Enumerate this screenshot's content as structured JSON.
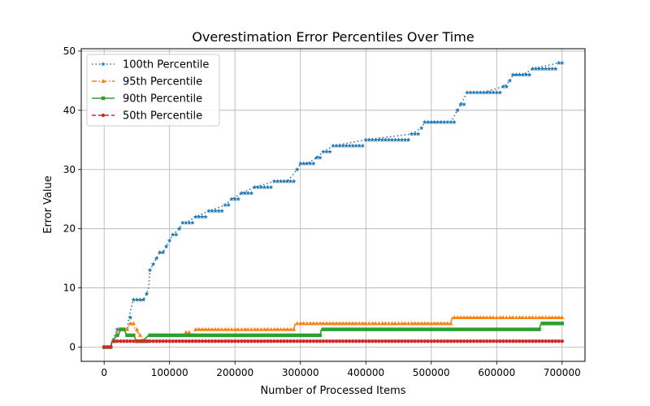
{
  "chart_data": {
    "type": "line",
    "title": "Overestimation Error Percentiles Over Time",
    "xlabel": "Number of Processed Items",
    "ylabel": "Error Value",
    "xlim": [
      -35000,
      735000
    ],
    "ylim": [
      -2.4,
      50.4
    ],
    "xticks": [
      0,
      100000,
      200000,
      300000,
      400000,
      500000,
      600000,
      700000
    ],
    "yticks": [
      0,
      10,
      20,
      30,
      40,
      50
    ],
    "grid": true,
    "legend_position": "top-left",
    "series": [
      {
        "name": "100th Percentile",
        "color": "#1f77b4",
        "linestyle": "dotted",
        "marker": "star",
        "x": [
          0,
          10000,
          12000,
          20000,
          35000,
          38000,
          42000,
          45000,
          50000,
          60000,
          65000,
          68000,
          70000,
          75000,
          80000,
          85000,
          90000,
          95000,
          100000,
          105000,
          115000,
          120000,
          125000,
          140000,
          160000,
          185000,
          195000,
          210000,
          230000,
          260000,
          280000,
          295000,
          300000,
          310000,
          325000,
          335000,
          350000,
          400000,
          470000,
          485000,
          490000,
          530000,
          540000,
          545000,
          555000,
          565000,
          580000,
          610000,
          620000,
          625000,
          640000,
          655000,
          695000,
          700000
        ],
        "y": [
          0,
          0,
          1,
          3,
          3,
          5,
          7,
          8,
          8,
          8,
          9,
          10,
          13,
          14,
          15,
          16,
          16,
          17,
          18,
          19,
          20,
          21,
          21,
          22,
          23,
          24,
          25,
          26,
          27,
          28,
          28,
          30,
          31,
          31,
          32,
          33,
          34,
          35,
          36,
          37,
          38,
          38,
          40,
          41,
          43,
          43,
          43,
          44,
          45,
          46,
          46,
          47,
          48,
          48
        ]
      },
      {
        "name": "95th Percentile",
        "color": "#ff7f0e",
        "linestyle": "dashdot",
        "marker": "triangle",
        "x": [
          0,
          10000,
          12000,
          18000,
          22000,
          30000,
          35000,
          40000,
          42000,
          48000,
          55000,
          60000,
          68000,
          75000,
          120000,
          125000,
          135000,
          140000,
          290000,
          292000,
          330000,
          332000,
          530000,
          532000,
          700000
        ],
        "y": [
          0,
          0,
          1,
          2,
          3,
          3,
          3,
          4,
          4,
          3,
          2,
          1,
          2,
          2,
          2,
          2.5,
          2,
          3,
          3,
          4,
          4,
          4,
          4,
          5,
          5
        ]
      },
      {
        "name": "90th Percentile",
        "color": "#2ca02c",
        "linestyle": "solid",
        "marker": "square",
        "x": [
          0,
          10000,
          12000,
          20000,
          22000,
          25000,
          30000,
          35000,
          45000,
          50000,
          58000,
          68000,
          72000,
          330000,
          332000,
          665000,
          668000,
          700000
        ],
        "y": [
          0,
          0,
          1,
          2,
          2,
          3,
          3,
          2,
          2,
          1,
          1,
          2,
          2,
          2,
          3,
          3,
          4,
          4
        ]
      },
      {
        "name": "50th Percentile",
        "color": "#d62728",
        "linestyle": "dashed",
        "marker": "circle",
        "x": [
          0,
          10000,
          12000,
          700000
        ],
        "y": [
          0,
          0,
          1,
          1
        ]
      }
    ]
  }
}
